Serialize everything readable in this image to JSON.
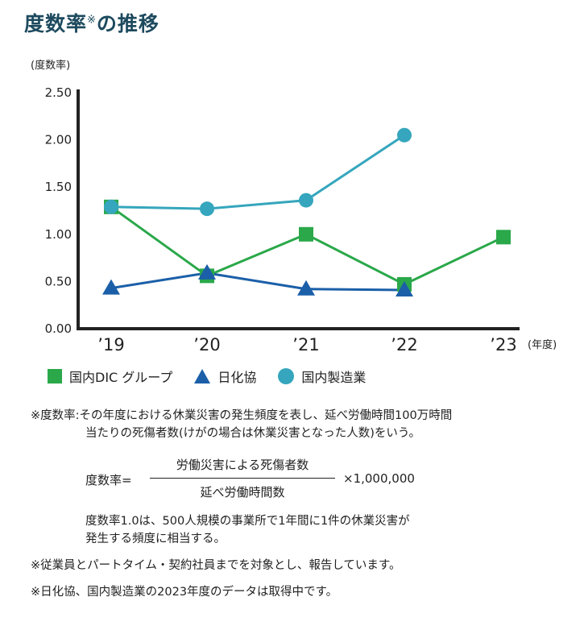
{
  "title": {
    "main": "度数率",
    "mark": "※",
    "rest": "の推移"
  },
  "chart_data": {
    "type": "line",
    "ylabel": "(度数率)",
    "xlabel": "(年度)",
    "ylim": [
      0,
      2.5
    ],
    "yticks": [
      "0.00",
      "0.50",
      "1.00",
      "1.50",
      "2.00",
      "2.50"
    ],
    "categories": [
      "’19",
      "’20",
      "’21",
      "’22",
      "’23"
    ],
    "grid": false,
    "legend_position": "bottom",
    "series": [
      {
        "name": "国内DIC グループ",
        "marker": "square",
        "color": "#2aa84a",
        "values": [
          1.29,
          0.56,
          1.0,
          0.47,
          0.97
        ]
      },
      {
        "name": "日化協",
        "marker": "triangle",
        "color": "#1b5fa8",
        "values": [
          0.43,
          0.59,
          0.42,
          0.41,
          null
        ]
      },
      {
        "name": "国内製造業",
        "marker": "circle",
        "color": "#35a6bd",
        "values": [
          1.29,
          1.27,
          1.36,
          2.05,
          null
        ]
      }
    ]
  },
  "notes": {
    "def_line1": "※度数率:その年度における休業災害の発生頻度を表し、延べ労働時間100万時間",
    "def_line2": "当たりの死傷者数(けがの場合は休業災害となった人数)をいう。",
    "formula_lhs": "度数率=",
    "formula_numerator": "労働災害による死傷者数",
    "formula_denominator": "延べ労働時間数",
    "formula_multiplier": "×1,000,000",
    "example_line1": "度数率1.0は、500人規模の事業所で1年間に1件の休業災害が",
    "example_line2": "発生する頻度に相当する。",
    "foot1": "※従業員とパートタイム・契約社員までを対象とし、報告しています。",
    "foot2": "※日化協、国内製造業の2023年度のデータは取得中です。"
  }
}
